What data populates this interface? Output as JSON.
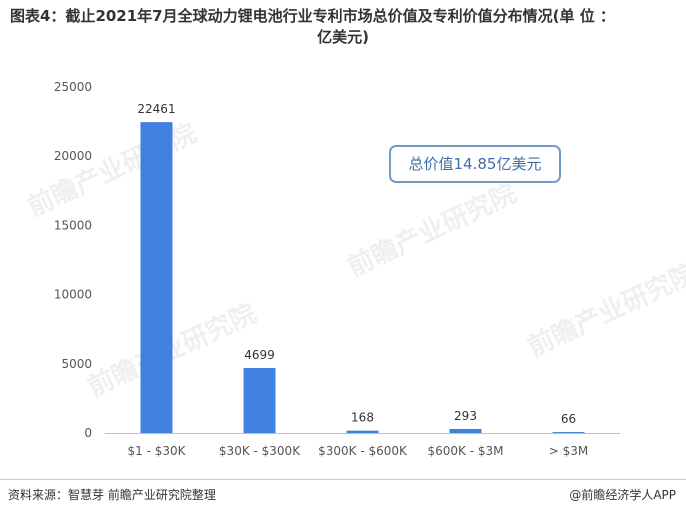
{
  "title": {
    "line1": "图表4：截止2021年7月全球动力锂电池行业专利市场总价值及专利价值分布情况(单 位 ：",
    "line2": "亿美元)"
  },
  "callout": "总价值14.85亿美元",
  "source": "资料来源：智慧芽 前瞻产业研究院整理",
  "brand": "@前瞻经济学人APP",
  "watermark": "前瞻产业研究院",
  "colors": {
    "bar": "#3f80e0",
    "callout_border": "#6f9bc9",
    "callout_text": "#3f6fa8"
  },
  "chart_data": {
    "type": "bar",
    "categories": [
      "$1 - $30K",
      "$30K - $300K",
      "$300K - $600K",
      "$600K - $3M",
      "> $3M"
    ],
    "values": [
      22461,
      4699,
      168,
      293,
      66
    ],
    "ylim": [
      0,
      25000
    ],
    "yticks": [
      0,
      5000,
      10000,
      15000,
      20000,
      25000
    ],
    "grid": false,
    "legend": "none"
  }
}
